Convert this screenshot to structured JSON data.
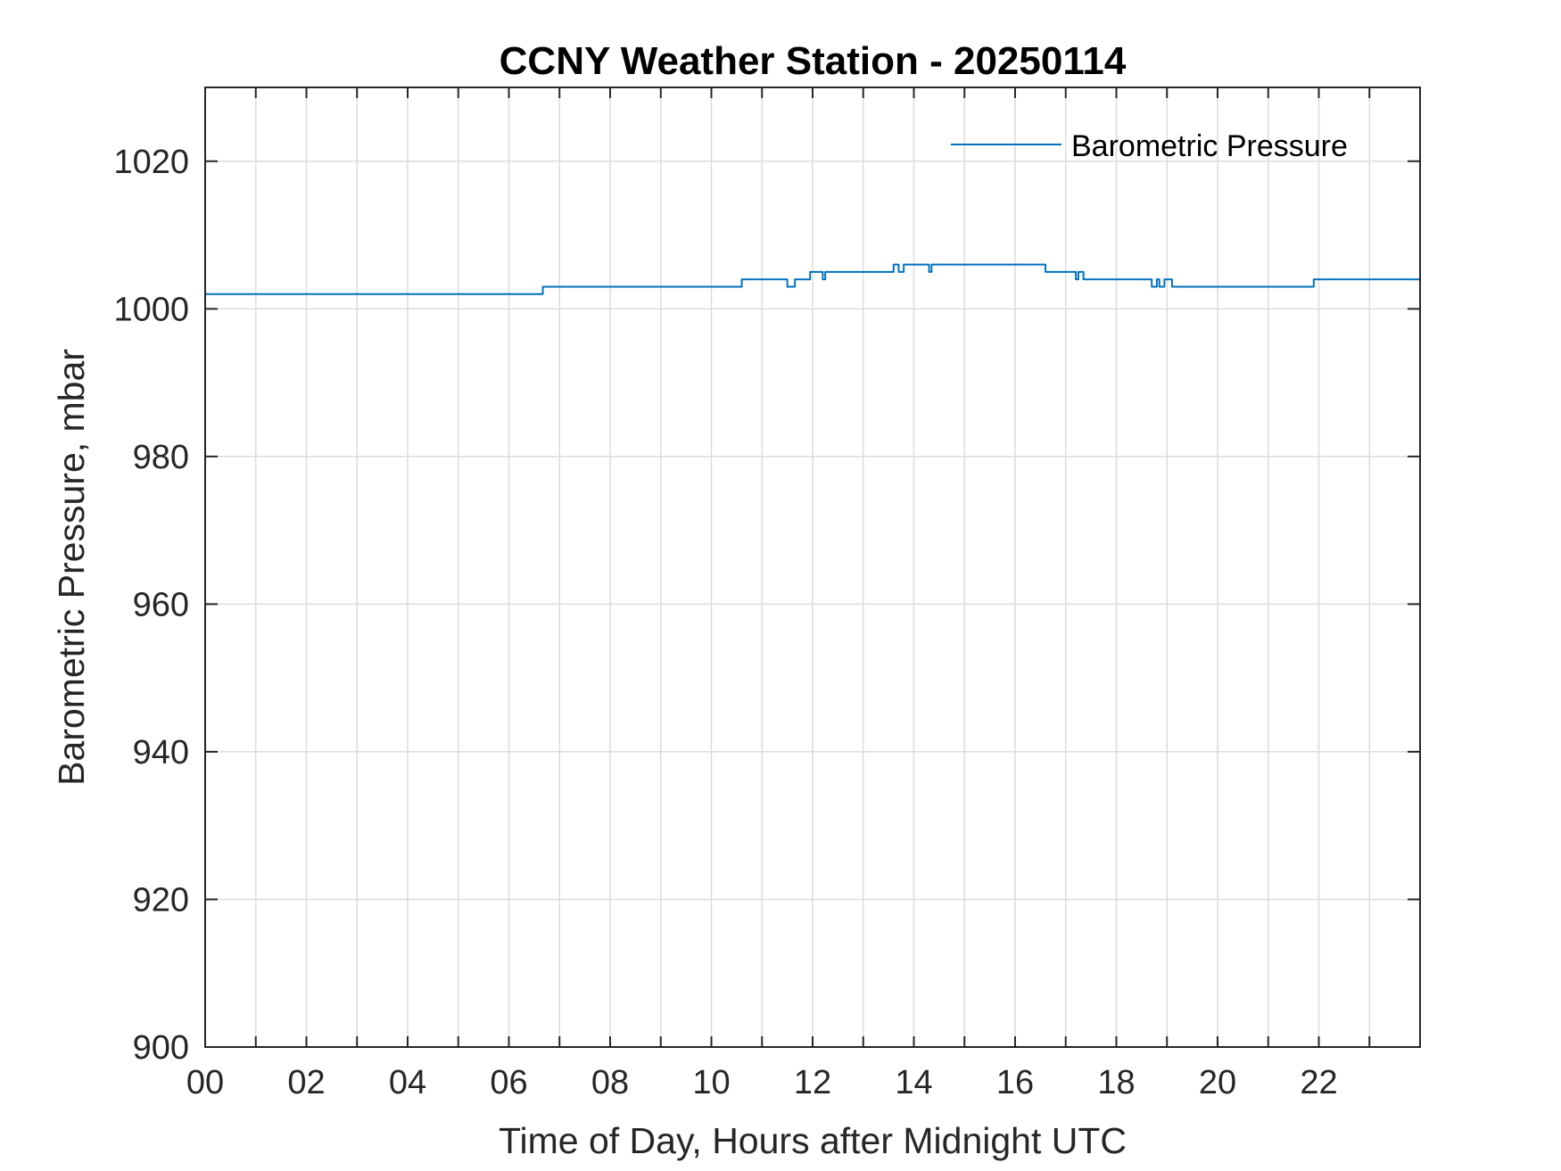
{
  "chart_data": {
    "type": "line",
    "title": "CCNY Weather Station - 20250114",
    "xlabel": "Time of Day, Hours after Midnight UTC",
    "ylabel": "Barometric Pressure, mbar",
    "xlim": [
      0,
      24
    ],
    "ylim": [
      900,
      1030
    ],
    "x_ticks": [
      0,
      2,
      4,
      6,
      8,
      10,
      12,
      14,
      16,
      18,
      20,
      22
    ],
    "x_tick_labels": [
      "00",
      "02",
      "04",
      "06",
      "08",
      "10",
      "12",
      "14",
      "16",
      "18",
      "20",
      "22"
    ],
    "x_minor_ticks": [
      1,
      3,
      5,
      7,
      9,
      11,
      13,
      15,
      17,
      19,
      21,
      23
    ],
    "y_ticks": [
      900,
      920,
      940,
      960,
      980,
      1000,
      1020
    ],
    "y_tick_labels": [
      "900",
      "920",
      "940",
      "960",
      "980",
      "1000",
      "1020"
    ],
    "grid": true,
    "legend_position": "top-right",
    "colors": {
      "series": "#0072BD",
      "axis": "#262626",
      "grid": "#dcdcdc"
    },
    "series": [
      {
        "name": "Barometric Pressure",
        "x": [
          0,
          6.67,
          6.67,
          10.6,
          10.6,
          11.5,
          11.5,
          11.65,
          11.65,
          11.95,
          11.95,
          12.2,
          12.2,
          12.25,
          12.25,
          13.6,
          13.6,
          13.7,
          13.7,
          13.8,
          13.8,
          14.3,
          14.3,
          14.35,
          14.35,
          16.6,
          16.6,
          17.2,
          17.2,
          17.25,
          17.25,
          17.35,
          17.35,
          17.4,
          17.4,
          18.7,
          18.7,
          18.8,
          18.8,
          18.85,
          18.85,
          18.95,
          18.95,
          19.0,
          19.0,
          19.1,
          19.1,
          21.9,
          21.9,
          24
        ],
        "y": [
          1002,
          1002,
          1003,
          1003,
          1004,
          1004,
          1003,
          1003,
          1004,
          1004,
          1005,
          1005,
          1004,
          1004,
          1005,
          1005,
          1006,
          1006,
          1005,
          1005,
          1006,
          1006,
          1005,
          1005,
          1006,
          1006,
          1005,
          1005,
          1004,
          1004,
          1005,
          1005,
          1004,
          1004,
          1004,
          1004,
          1003,
          1003,
          1004,
          1004,
          1003,
          1003,
          1004,
          1004,
          1004,
          1004,
          1003,
          1003,
          1004,
          1004
        ]
      }
    ]
  }
}
